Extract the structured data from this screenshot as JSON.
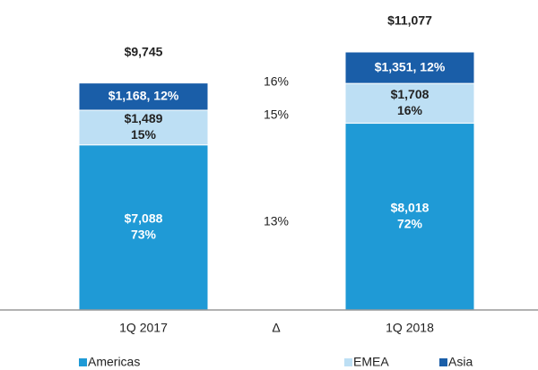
{
  "chart_data": {
    "type": "stacked_bar",
    "categories": [
      "1Q 2017",
      "1Q 2018"
    ],
    "series": [
      {
        "name": "Americas",
        "color": "#1f9ad6",
        "label_color": "#ffffff",
        "values": [
          7088,
          8018
        ],
        "value_labels": [
          "$7,088",
          "$8,018"
        ],
        "shares": [
          73,
          72
        ],
        "share_labels": [
          "73%",
          "72%"
        ]
      },
      {
        "name": "EMEA",
        "color": "#bddff4",
        "label_color": "#222222",
        "values": [
          1489,
          1708
        ],
        "value_labels": [
          "$1,489",
          "$1,708"
        ],
        "shares": [
          15,
          16
        ],
        "share_labels": [
          "15%",
          "16%"
        ]
      },
      {
        "name": "Asia",
        "color": "#1a5ea8",
        "label_color": "#ffffff",
        "values": [
          1168,
          1351
        ],
        "value_labels": [
          "$1,168, 12%",
          "$1,351, 12%"
        ]
      }
    ],
    "totals": [
      9745,
      11077
    ],
    "total_labels": [
      "$9,745",
      "$11,077"
    ],
    "delta": {
      "label": "Δ",
      "values": [
        13,
        15,
        16
      ],
      "value_labels": [
        "13%",
        "15%",
        "16%"
      ]
    }
  }
}
